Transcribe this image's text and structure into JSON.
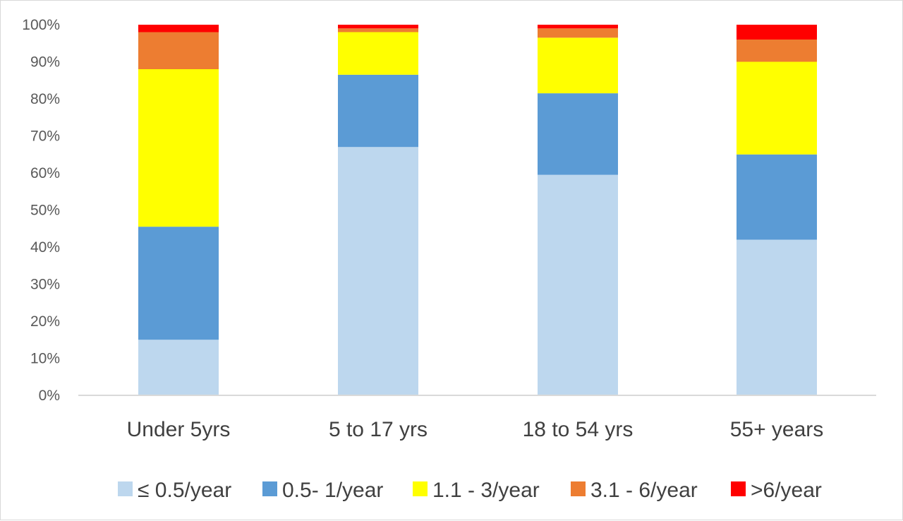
{
  "chart_data": {
    "type": "bar",
    "stacked": true,
    "percent_stacked": true,
    "categories": [
      "Under 5yrs",
      "5 to 17 yrs",
      "18 to 54 yrs",
      "55+ years"
    ],
    "series": [
      {
        "name": "≤ 0.5/year",
        "color": "#bdd7ee",
        "values": [
          15,
          67,
          59.5,
          42
        ]
      },
      {
        "name": "0.5- 1/year",
        "color": "#5b9bd5",
        "values": [
          30.5,
          19.5,
          22,
          23
        ]
      },
      {
        "name": "1.1 - 3/year",
        "color": "#ffff00",
        "values": [
          42.5,
          11.5,
          15,
          25
        ]
      },
      {
        "name": "3.1 - 6/year",
        "color": "#ed7d31",
        "values": [
          10,
          1,
          2.5,
          6
        ]
      },
      {
        "name": ">6/year",
        "color": "#ff0000",
        "values": [
          2,
          1,
          1,
          4
        ]
      }
    ],
    "ylim": [
      0,
      100
    ],
    "yticks": [
      "0%",
      "10%",
      "20%",
      "30%",
      "40%",
      "50%",
      "60%",
      "70%",
      "80%",
      "90%",
      "100%"
    ],
    "grid": false,
    "legend_position": "bottom",
    "title": "",
    "xlabel": "",
    "ylabel": ""
  }
}
